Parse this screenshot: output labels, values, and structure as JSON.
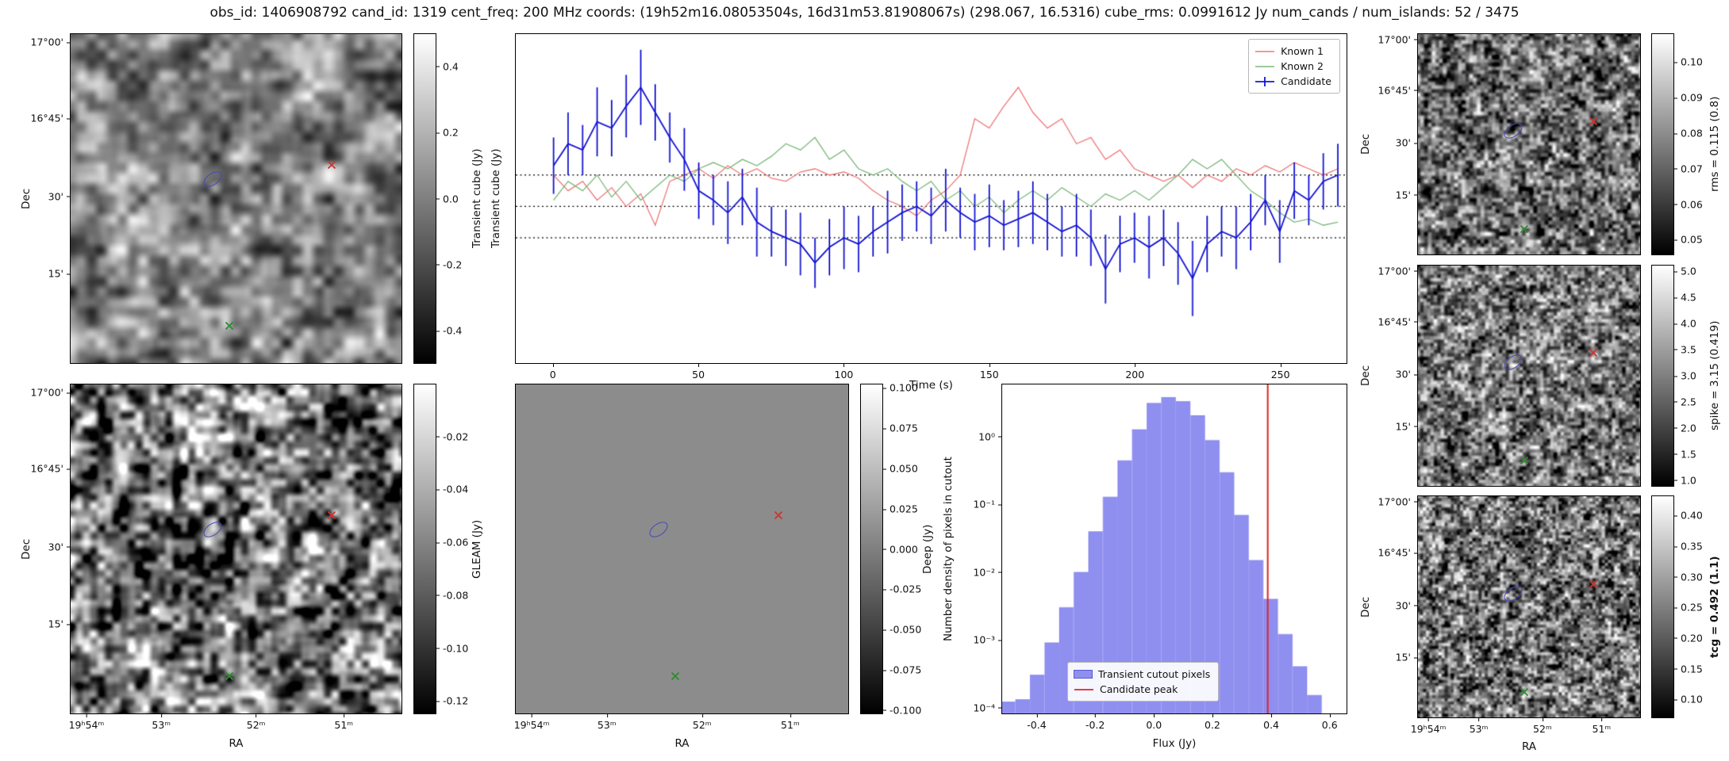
{
  "title": "obs_id: 1406908792 cand_id: 1319 cent_freq: 200 MHz coords: (19h52m16.08053504s, 16d31m53.81908067s) (298.067, 16.5316) cube_rms: 0.0991612 Jy num_cands / num_islands: 52 / 3475",
  "axes": {
    "dec_label": "Dec",
    "ra_label": "RA",
    "dec_ticks": [
      {
        "label": "17°00'",
        "pos": 0.027
      },
      {
        "label": "16°45'",
        "pos": 0.257
      },
      {
        "label": "30'",
        "pos": 0.493
      },
      {
        "label": "15'",
        "pos": 0.727
      }
    ],
    "ra_ticks": [
      {
        "label": "19ʰ54ᵐ",
        "pos": 0.05
      },
      {
        "label": "53ᵐ",
        "pos": 0.275
      },
      {
        "label": "52ᵐ",
        "pos": 0.56
      },
      {
        "label": "51ᵐ",
        "pos": 0.824
      }
    ]
  },
  "markers": {
    "candidate_contour": {
      "x": 0.43,
      "y": 0.44,
      "color": "#4646c0"
    },
    "known1_cross": {
      "x": 0.79,
      "y": 0.4,
      "color": "#cc3333"
    },
    "known2_cross": {
      "x": 0.48,
      "y": 0.89,
      "color": "#2e8b2e"
    }
  },
  "panels": {
    "transient": {
      "colorbar_label": "Transient cube (Jy)",
      "colorbar_ticks": [
        {
          "label": "0.4",
          "pos": 0.1
        },
        {
          "label": "0.2",
          "pos": 0.3
        },
        {
          "label": "0.0",
          "pos": 0.5
        },
        {
          "label": "-0.2",
          "pos": 0.7
        },
        {
          "label": "-0.4",
          "pos": 0.9
        }
      ]
    },
    "gleam": {
      "colorbar_label": "GLEAM (Jy)",
      "colorbar_ticks": [
        {
          "label": "-0.02",
          "pos": 0.16
        },
        {
          "label": "-0.04",
          "pos": 0.32
        },
        {
          "label": "-0.06",
          "pos": 0.48
        },
        {
          "label": "-0.08",
          "pos": 0.64
        },
        {
          "label": "-0.10",
          "pos": 0.8
        },
        {
          "label": "-0.12",
          "pos": 0.96
        }
      ]
    },
    "deep": {
      "colorbar_label": "Deep (Jy)",
      "colorbar_ticks": [
        {
          "label": "0.100",
          "pos": 0.013
        },
        {
          "label": "0.075",
          "pos": 0.135
        },
        {
          "label": "0.050",
          "pos": 0.257
        },
        {
          "label": "0.025",
          "pos": 0.379
        },
        {
          "label": "0.000",
          "pos": 0.5
        },
        {
          "label": "-0.025",
          "pos": 0.622
        },
        {
          "label": "-0.050",
          "pos": 0.744
        },
        {
          "label": "-0.075",
          "pos": 0.866
        },
        {
          "label": "-0.100",
          "pos": 0.988
        }
      ]
    },
    "rms": {
      "colorbar_label": "rms = 0.115 (0.8)",
      "colorbar_ticks": [
        {
          "label": "0.10",
          "pos": 0.13
        },
        {
          "label": "0.09",
          "pos": 0.29
        },
        {
          "label": "0.08",
          "pos": 0.45
        },
        {
          "label": "0.07",
          "pos": 0.61
        },
        {
          "label": "0.06",
          "pos": 0.77
        },
        {
          "label": "0.05",
          "pos": 0.93
        }
      ]
    },
    "spike": {
      "colorbar_label": "spike = 3.15 (0.419)",
      "colorbar_ticks": [
        {
          "label": "5.0",
          "pos": 0.03
        },
        {
          "label": "4.5",
          "pos": 0.147
        },
        {
          "label": "4.0",
          "pos": 0.265
        },
        {
          "label": "3.5",
          "pos": 0.382
        },
        {
          "label": "3.0",
          "pos": 0.5
        },
        {
          "label": "2.5",
          "pos": 0.617
        },
        {
          "label": "2.0",
          "pos": 0.735
        },
        {
          "label": "1.5",
          "pos": 0.852
        },
        {
          "label": "1.0",
          "pos": 0.97
        }
      ]
    },
    "tcg": {
      "colorbar_label": "tcg = 0.492 (1.1)",
      "colorbar_ticks": [
        {
          "label": "0.40",
          "pos": 0.09
        },
        {
          "label": "0.35",
          "pos": 0.228
        },
        {
          "label": "0.30",
          "pos": 0.365
        },
        {
          "label": "0.25",
          "pos": 0.503
        },
        {
          "label": "0.20",
          "pos": 0.64
        },
        {
          "label": "0.15",
          "pos": 0.778
        },
        {
          "label": "0.10",
          "pos": 0.916
        }
      ]
    }
  },
  "chart_data": [
    {
      "type": "line",
      "title": "",
      "xlabel": "Time (s)",
      "ylabel": "Transient cube (Jy)",
      "xlim": [
        -13,
        273
      ],
      "ylim": [
        -0.5,
        0.55
      ],
      "grid": false,
      "legend_position": "upper right",
      "hlines": [
        0.1,
        0.0,
        -0.1
      ],
      "xticks": [
        {
          "label": "0",
          "pos": 0.0455
        },
        {
          "label": "50",
          "pos": 0.2203
        },
        {
          "label": "100",
          "pos": 0.3951
        },
        {
          "label": "150",
          "pos": 0.5699
        },
        {
          "label": "200",
          "pos": 0.7448
        },
        {
          "label": "250",
          "pos": 0.9196
        }
      ],
      "x": [
        0,
        5,
        10,
        15,
        20,
        25,
        30,
        35,
        40,
        45,
        50,
        55,
        60,
        65,
        70,
        75,
        80,
        85,
        90,
        95,
        100,
        105,
        110,
        115,
        120,
        125,
        130,
        135,
        140,
        145,
        150,
        155,
        160,
        165,
        170,
        175,
        180,
        185,
        190,
        195,
        200,
        205,
        210,
        215,
        220,
        225,
        230,
        235,
        240,
        245,
        250,
        255,
        260,
        265,
        270
      ],
      "series": [
        {
          "name": "Known 1",
          "color": "#ee7777",
          "values": [
            0.1,
            0.05,
            0.08,
            0.02,
            0.06,
            0.0,
            0.04,
            -0.06,
            0.08,
            0.1,
            0.12,
            0.09,
            0.13,
            0.1,
            0.12,
            0.09,
            0.08,
            0.11,
            0.12,
            0.1,
            0.11,
            0.09,
            0.05,
            0.02,
            0.0,
            -0.03,
            0.02,
            0.05,
            0.1,
            0.28,
            0.25,
            0.32,
            0.38,
            0.3,
            0.25,
            0.28,
            0.2,
            0.22,
            0.15,
            0.18,
            0.12,
            0.1,
            0.08,
            0.1,
            0.06,
            0.1,
            0.08,
            0.12,
            0.1,
            0.13,
            0.11,
            0.14,
            0.12,
            0.1,
            0.12
          ]
        },
        {
          "name": "Known 2",
          "color": "#7cb87c",
          "values": [
            0.02,
            0.08,
            0.05,
            0.1,
            0.03,
            0.08,
            0.02,
            0.06,
            0.1,
            0.08,
            0.12,
            0.14,
            0.12,
            0.15,
            0.13,
            0.16,
            0.2,
            0.18,
            0.22,
            0.15,
            0.18,
            0.12,
            0.1,
            0.12,
            0.08,
            0.05,
            0.08,
            0.02,
            0.05,
            0.0,
            0.03,
            -0.02,
            0.02,
            0.05,
            0.02,
            0.06,
            0.03,
            0.0,
            0.04,
            0.02,
            0.05,
            0.02,
            0.06,
            0.1,
            0.15,
            0.12,
            0.15,
            0.1,
            0.05,
            0.02,
            -0.02,
            -0.05,
            -0.04,
            -0.06,
            -0.05
          ]
        },
        {
          "name": "Candidate",
          "color": "#1414d2",
          "values": [
            0.13,
            0.2,
            0.18,
            0.27,
            0.25,
            0.32,
            0.38,
            0.3,
            0.22,
            0.15,
            0.05,
            0.02,
            -0.02,
            0.03,
            -0.05,
            -0.08,
            -0.1,
            -0.12,
            -0.18,
            -0.13,
            -0.1,
            -0.12,
            -0.08,
            -0.05,
            -0.02,
            0.0,
            -0.03,
            0.02,
            -0.02,
            -0.05,
            -0.03,
            -0.06,
            -0.04,
            -0.02,
            -0.05,
            -0.08,
            -0.06,
            -0.1,
            -0.2,
            -0.12,
            -0.1,
            -0.13,
            -0.1,
            -0.15,
            -0.23,
            -0.12,
            -0.08,
            -0.1,
            -0.05,
            0.02,
            -0.08,
            0.05,
            0.02,
            0.08,
            0.1
          ],
          "errors": [
            0.09,
            0.1,
            0.08,
            0.11,
            0.09,
            0.1,
            0.12,
            0.09,
            0.08,
            0.1,
            0.09,
            0.08,
            0.1,
            0.09,
            0.11,
            0.08,
            0.09,
            0.1,
            0.08,
            0.09,
            0.1,
            0.09,
            0.08,
            0.1,
            0.09,
            0.08,
            0.09,
            0.1,
            0.08,
            0.09,
            0.1,
            0.08,
            0.09,
            0.1,
            0.09,
            0.08,
            0.1,
            0.09,
            0.11,
            0.09,
            0.08,
            0.1,
            0.09,
            0.1,
            0.12,
            0.09,
            0.08,
            0.1,
            0.09,
            0.08,
            0.1,
            0.09,
            0.08,
            0.09,
            0.1
          ]
        }
      ]
    },
    {
      "type": "bar",
      "title": "",
      "xlabel": "Flux (Jy)",
      "ylabel": "Number density of pixels in cutout",
      "yscale": "log",
      "xlim": [
        -0.52,
        0.66
      ],
      "ylim": [
        8e-05,
        6
      ],
      "bar_color": "#8f8ff0",
      "legend_patch_label": "Transient cutout pixels",
      "bin_width": 0.05,
      "bin_centers": [
        -0.5,
        -0.45,
        -0.4,
        -0.35,
        -0.3,
        -0.25,
        -0.2,
        -0.15,
        -0.1,
        -0.05,
        0.0,
        0.05,
        0.1,
        0.15,
        0.2,
        0.25,
        0.3,
        0.35,
        0.4,
        0.45,
        0.5,
        0.55
      ],
      "values": [
        0.00012,
        0.00013,
        0.0003,
        0.0009,
        0.003,
        0.01,
        0.04,
        0.13,
        0.45,
        1.3,
        3.2,
        3.9,
        3.4,
        2.1,
        0.9,
        0.3,
        0.07,
        0.015,
        0.004,
        0.0012,
        0.0004,
        0.00015
      ],
      "vline": {
        "x": 0.39,
        "label": "Candidate peak",
        "color": "#e32222"
      },
      "xticks": [
        {
          "label": "-0.4",
          "pos": 0.102
        },
        {
          "label": "-0.2",
          "pos": 0.271
        },
        {
          "label": "0.0",
          "pos": 0.441
        },
        {
          "label": "0.2",
          "pos": 0.61
        },
        {
          "label": "0.4",
          "pos": 0.78
        },
        {
          "label": "0.6",
          "pos": 0.949
        }
      ],
      "yticks": [
        {
          "label": "10⁰",
          "pos": 0.16
        },
        {
          "label": "10⁻¹",
          "pos": 0.365
        },
        {
          "label": "10⁻²",
          "pos": 0.57
        },
        {
          "label": "10⁻³",
          "pos": 0.775
        },
        {
          "label": "10⁻⁴",
          "pos": 0.98
        }
      ]
    }
  ]
}
